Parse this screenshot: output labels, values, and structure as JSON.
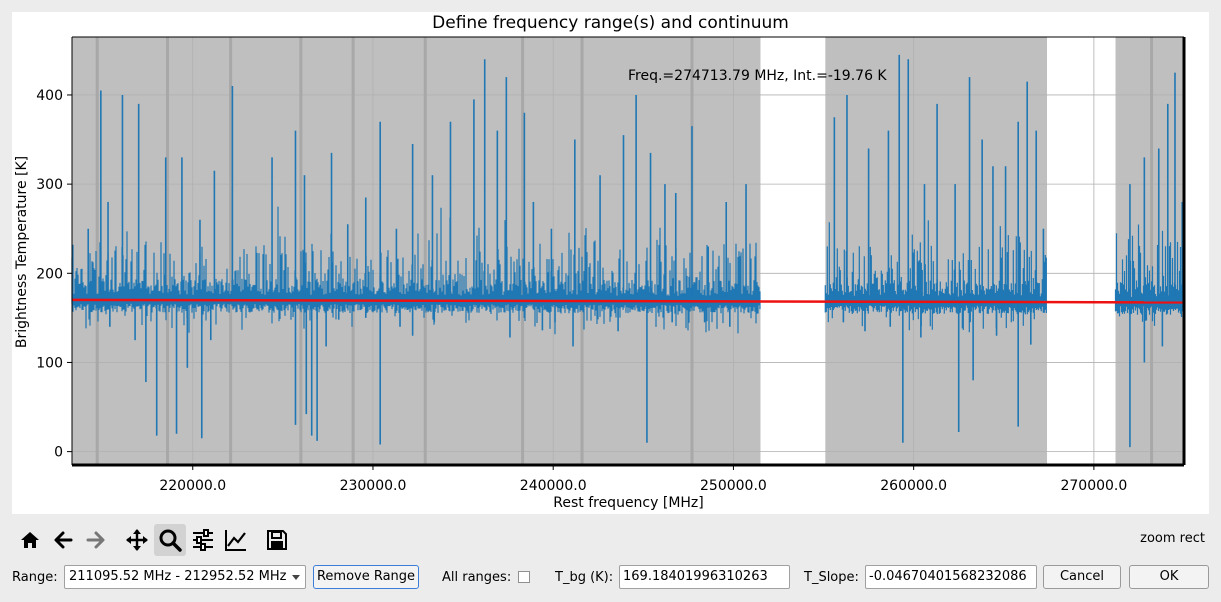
{
  "chart_data": {
    "type": "line",
    "title": "Define frequency range(s) and continuum",
    "xlabel": "Rest frequency [MHz]",
    "ylabel": "Brightness Temperature [K]",
    "xlim": [
      213300,
      275000
    ],
    "ylim": [
      -15,
      465
    ],
    "x_ticks": [
      220000,
      230000,
      240000,
      250000,
      260000,
      270000
    ],
    "x_tick_labels": [
      "220000.0",
      "230000.0",
      "240000.0",
      "250000.0",
      "260000.0",
      "270000.0"
    ],
    "y_ticks": [
      0,
      100,
      200,
      300,
      400
    ],
    "y_tick_labels": [
      "0",
      "100",
      "200",
      "300",
      "400"
    ],
    "grid": true,
    "annotation": "Freq.=274713.79 MHz, Int.=-19.76 K",
    "spectrum_segments": [
      [
        213300,
        251500
      ],
      [
        255100,
        267400
      ],
      [
        271200,
        275000
      ]
    ],
    "selected_ranges_shaded": [
      [
        213300,
        251500
      ],
      [
        255100,
        267400
      ],
      [
        271200,
        275000
      ]
    ],
    "range_boundaries": [
      214700,
      218600,
      222100,
      226000,
      228900,
      232900,
      238300,
      241600,
      247700,
      273200
    ],
    "continuum": {
      "color": "#ee1111",
      "start_value": 170.2,
      "slope_per_GHz": -0.0467
    },
    "spectrum_color": "#1f77b4",
    "emission_peaks": [
      [
        214200,
        250
      ],
      [
        214900,
        405
      ],
      [
        215300,
        280
      ],
      [
        216100,
        400
      ],
      [
        217000,
        390
      ],
      [
        218500,
        330
      ],
      [
        219400,
        330
      ],
      [
        220400,
        260
      ],
      [
        221200,
        315
      ],
      [
        222200,
        410
      ],
      [
        224400,
        330
      ],
      [
        225700,
        360
      ],
      [
        226200,
        310
      ],
      [
        227700,
        335
      ],
      [
        228600,
        255
      ],
      [
        229600,
        285
      ],
      [
        230400,
        370
      ],
      [
        231300,
        250
      ],
      [
        232200,
        345
      ],
      [
        233300,
        310
      ],
      [
        234300,
        370
      ],
      [
        235600,
        395
      ],
      [
        236200,
        440
      ],
      [
        236900,
        360
      ],
      [
        237400,
        420
      ],
      [
        238400,
        380
      ],
      [
        238900,
        280
      ],
      [
        239900,
        250
      ],
      [
        241200,
        350
      ],
      [
        242600,
        310
      ],
      [
        243900,
        355
      ],
      [
        244600,
        400
      ],
      [
        245400,
        335
      ],
      [
        246200,
        300
      ],
      [
        246800,
        290
      ],
      [
        247700,
        365
      ],
      [
        248600,
        230
      ],
      [
        249600,
        280
      ],
      [
        250700,
        300
      ],
      [
        255600,
        375
      ],
      [
        256300,
        400
      ],
      [
        257500,
        340
      ],
      [
        258600,
        360
      ],
      [
        259200,
        445
      ],
      [
        259700,
        440
      ],
      [
        260600,
        300
      ],
      [
        261300,
        390
      ],
      [
        262300,
        300
      ],
      [
        263100,
        420
      ],
      [
        263800,
        350
      ],
      [
        264400,
        320
      ],
      [
        265100,
        320
      ],
      [
        265800,
        370
      ],
      [
        266300,
        415
      ],
      [
        266800,
        360
      ],
      [
        267200,
        250
      ],
      [
        272000,
        300
      ],
      [
        272800,
        330
      ],
      [
        273600,
        340
      ],
      [
        274100,
        390
      ],
      [
        274500,
        425
      ],
      [
        274900,
        280
      ]
    ],
    "absorption_dips": [
      [
        215400,
        140
      ],
      [
        216800,
        125
      ],
      [
        217400,
        78
      ],
      [
        218000,
        18
      ],
      [
        219100,
        20
      ],
      [
        219700,
        94
      ],
      [
        220500,
        15
      ],
      [
        221000,
        125
      ],
      [
        225700,
        30
      ],
      [
        226300,
        42
      ],
      [
        226600,
        18
      ],
      [
        226900,
        12
      ],
      [
        227400,
        118
      ],
      [
        228100,
        148
      ],
      [
        229600,
        150
      ],
      [
        230400,
        8
      ],
      [
        231500,
        140
      ],
      [
        232200,
        130
      ],
      [
        233400,
        145
      ],
      [
        237600,
        128
      ],
      [
        238400,
        150
      ],
      [
        239400,
        136
      ],
      [
        240100,
        145
      ],
      [
        241100,
        118
      ],
      [
        243600,
        135
      ],
      [
        245200,
        10
      ],
      [
        246600,
        145
      ],
      [
        248400,
        145
      ],
      [
        249800,
        140
      ],
      [
        256100,
        145
      ],
      [
        257300,
        135
      ],
      [
        258700,
        140
      ],
      [
        259400,
        10
      ],
      [
        260400,
        128
      ],
      [
        262500,
        22
      ],
      [
        263300,
        80
      ],
      [
        264600,
        130
      ],
      [
        265800,
        28
      ],
      [
        266500,
        120
      ],
      [
        272000,
        5
      ],
      [
        272800,
        100
      ],
      [
        273800,
        118
      ]
    ]
  },
  "toolbar": {
    "buttons": [
      {
        "name": "home-button",
        "icon": "home-icon"
      },
      {
        "name": "back-button",
        "icon": "arrow-left-icon"
      },
      {
        "name": "forward-button",
        "icon": "arrow-right-icon"
      },
      {
        "name": "pan-button",
        "icon": "move-icon"
      },
      {
        "name": "zoom-button",
        "icon": "magnifier-icon",
        "active": true
      },
      {
        "name": "subplots-button",
        "icon": "sliders-icon"
      },
      {
        "name": "axes-button",
        "icon": "line-chart-icon"
      },
      {
        "name": "save-button",
        "icon": "floppy-disk-icon"
      }
    ],
    "mode_text": "zoom rect"
  },
  "controls": {
    "range_label": "Range:",
    "range_value": "211095.52 MHz - 212952.52 MHz",
    "remove_range_label": "Remove Range",
    "all_ranges_label": "All ranges:",
    "all_ranges_checked": false,
    "tbg_label": "T_bg (K):",
    "tbg_value": "169.18401996310263",
    "tslope_label": "T_Slope:",
    "tslope_value": "-0.04670401568232086",
    "cancel_label": "Cancel",
    "ok_label": "OK"
  },
  "colors": {
    "shade": "#bfbfbf",
    "boundary": "#a8a8a8",
    "frame": "#000000"
  }
}
